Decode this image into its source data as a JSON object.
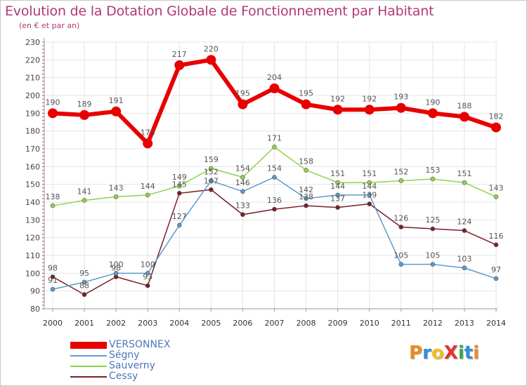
{
  "header": {
    "title": "Evolution de la Dotation Globale de Fonctionnement par Habitant",
    "subtitle": "(en € et par an)"
  },
  "logo": {
    "text": "ProXiti",
    "letters": [
      "P",
      "r",
      "o",
      "X",
      "i",
      "t",
      "i"
    ]
  },
  "colors": {
    "title": "#b03878",
    "axis": "#999999",
    "grid": "#e4e4e4",
    "value_label": "#555555",
    "legend_text": "#4a78b8"
  },
  "chart_data": {
    "type": "line",
    "title": "Evolution de la Dotation Globale de Fonctionnement par Habitant",
    "subtitle": "(en € et par an)",
    "xlabel": "",
    "ylabel": "",
    "ylim": [
      80,
      230
    ],
    "yticks": [
      80,
      90,
      100,
      110,
      120,
      130,
      140,
      150,
      160,
      170,
      180,
      190,
      200,
      210,
      220,
      230
    ],
    "grid": true,
    "legend_position": "bottom-left",
    "x": [
      "2000",
      "2001",
      "2002",
      "2003",
      "2004",
      "2005",
      "2006",
      "2007",
      "2008",
      "2009",
      "2010",
      "2011",
      "2012",
      "2013",
      "2014"
    ],
    "series": [
      {
        "name": "VERSONNEX",
        "color": "#e80000",
        "width": 6,
        "marker": 7,
        "values": [
          190,
          189,
          191,
          173,
          217,
          220,
          195,
          204,
          195,
          192,
          192,
          193,
          190,
          188,
          182
        ]
      },
      {
        "name": "Ségny",
        "color": "#5b9bd0",
        "width": 1.5,
        "marker": 3,
        "values": [
          91,
          95,
          100,
          100,
          127,
          152,
          146,
          154,
          142,
          144,
          144,
          105,
          105,
          103,
          97
        ]
      },
      {
        "name": "Sauverny",
        "color": "#8ed44c",
        "width": 1.5,
        "marker": 3,
        "values": [
          138,
          141,
          143,
          144,
          149,
          159,
          154,
          171,
          158,
          151,
          151,
          152,
          153,
          151,
          143
        ]
      },
      {
        "name": "Cessy",
        "color": "#7a1e28",
        "width": 1.5,
        "marker": 3,
        "values": [
          98,
          88,
          98,
          93,
          145,
          147,
          133,
          136,
          138,
          137,
          139,
          126,
          125,
          124,
          116
        ]
      }
    ]
  }
}
